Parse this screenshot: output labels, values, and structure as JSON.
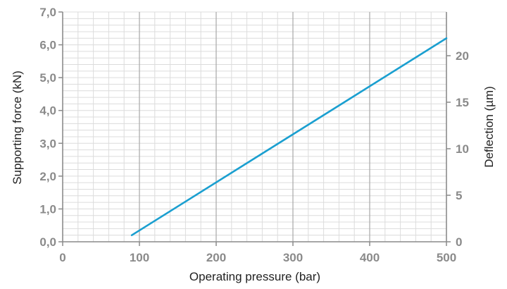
{
  "chart_data": {
    "type": "line",
    "xlabel": "Operating pressure (bar)",
    "ylabel": "Supporting force (kN)",
    "y2label": "Deflection (µm)",
    "xlim": [
      0,
      500
    ],
    "ylim": [
      0,
      7
    ],
    "y2lim": [
      0,
      24.7
    ],
    "x_ticks": [
      0,
      100,
      200,
      300,
      400,
      500
    ],
    "x_tick_labels": [
      "0",
      "100",
      "200",
      "300",
      "400",
      "500"
    ],
    "y_ticks": [
      0,
      1,
      2,
      3,
      4,
      5,
      6,
      7
    ],
    "y_tick_labels": [
      "0,0",
      "1,0",
      "2,0",
      "3,0",
      "4,0",
      "5,0",
      "6,0",
      "7,0"
    ],
    "y2_ticks": [
      0,
      5,
      10,
      15,
      20
    ],
    "y2_tick_labels": [
      "0",
      "5",
      "10",
      "15",
      "20"
    ],
    "grid": true,
    "series": [
      {
        "color": "#1a9fd0",
        "x": [
          90,
          500
        ],
        "y": [
          0.2,
          6.2
        ]
      }
    ]
  }
}
